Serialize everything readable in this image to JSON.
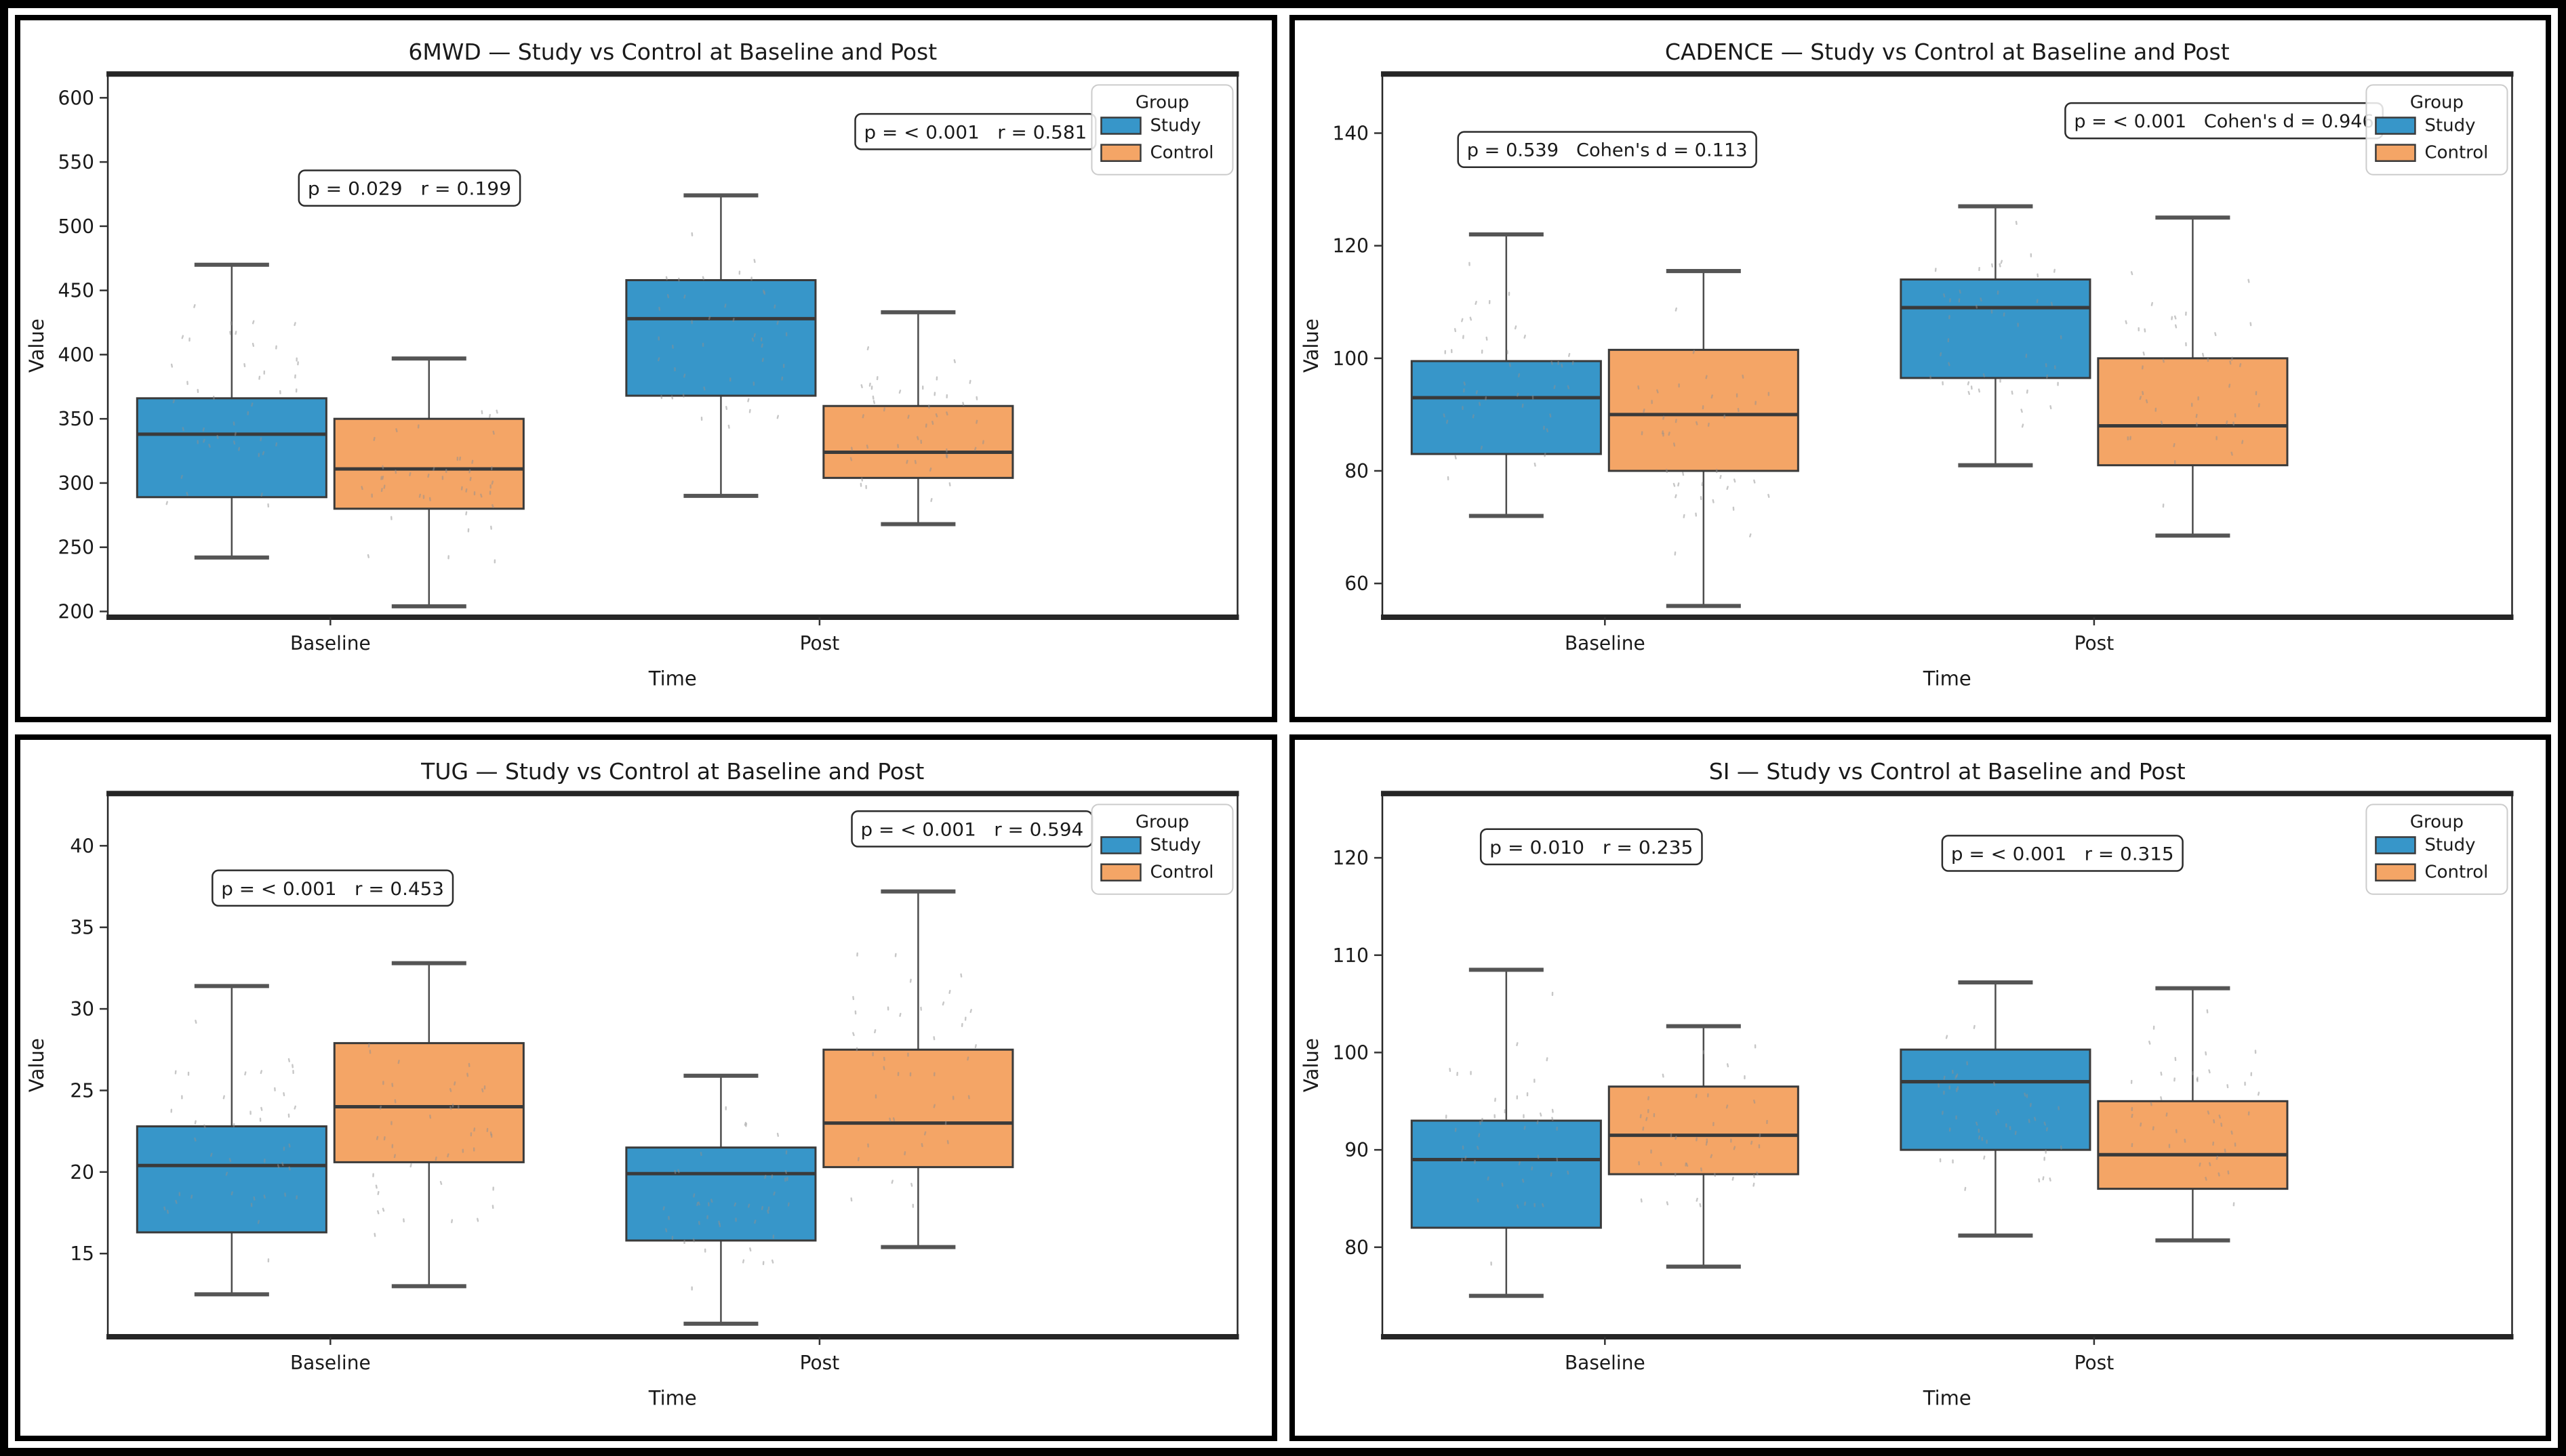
{
  "colors": {
    "study": "#3796c9",
    "control": "#f4a566",
    "box_edge": "#3a3a3a",
    "median": "#3a3a3a",
    "whisker": "#4d4d4d",
    "cap": "#555555",
    "jitter": "#8f8f8f",
    "spine": "#262626",
    "annotation_border": "#2b2b2b",
    "annotation_bg": "#ffffff",
    "legend_border": "#cccccc",
    "legend_bg": "#ffffff"
  },
  "legend": {
    "title": "Group",
    "entries": [
      {
        "label": "Study",
        "color_key": "study"
      },
      {
        "label": "Control",
        "color_key": "control"
      }
    ],
    "position": "upper right"
  },
  "chart_data": [
    {
      "id": "6mwd",
      "type": "box",
      "title": "6MWD — Study vs Control at Baseline and Post",
      "xlabel": "Time",
      "ylabel": "Value",
      "categories": [
        "Baseline",
        "Post"
      ],
      "ylim": [
        195.5,
        618.5
      ],
      "yticks": [
        200,
        250,
        300,
        350,
        400,
        450,
        500,
        550,
        600
      ],
      "grid": false,
      "legend_position": "upper right",
      "series": [
        {
          "name": "Study",
          "boxes": [
            {
              "time": "Baseline",
              "whislo": 242,
              "q1": 289,
              "med": 338,
              "q3": 366,
              "whishi": 470
            },
            {
              "time": "Post",
              "whislo": 290,
              "q1": 368,
              "med": 428,
              "q3": 458,
              "whishi": 524
            }
          ]
        },
        {
          "name": "Control",
          "boxes": [
            {
              "time": "Baseline",
              "whislo": 204,
              "q1": 280,
              "med": 311,
              "q3": 350,
              "whishi": 397
            },
            {
              "time": "Post",
              "whislo": 268,
              "q1": 304,
              "med": 324,
              "q3": 360,
              "whishi": 433
            }
          ]
        }
      ],
      "annotations": [
        {
          "text": "p = 0.029   r = 0.199",
          "fx": 0.267,
          "fy": 0.21
        },
        {
          "text": "p = < 0.001   r = 0.581",
          "fx": 0.768,
          "fy": 0.106
        }
      ]
    },
    {
      "id": "cadence",
      "type": "box",
      "title": "CADENCE — Study vs Control at Baseline and Post",
      "xlabel": "Time",
      "ylabel": "Value",
      "categories": [
        "Baseline",
        "Post"
      ],
      "ylim": [
        54,
        150.5
      ],
      "yticks": [
        60,
        80,
        100,
        120,
        140
      ],
      "grid": false,
      "legend_position": "upper right",
      "series": [
        {
          "name": "Study",
          "boxes": [
            {
              "time": "Baseline",
              "whislo": 72,
              "q1": 83,
              "med": 93,
              "q3": 99.5,
              "whishi": 122
            },
            {
              "time": "Post",
              "whislo": 81,
              "q1": 96.5,
              "med": 109,
              "q3": 114,
              "whishi": 127
            }
          ]
        },
        {
          "name": "Control",
          "boxes": [
            {
              "time": "Baseline",
              "whislo": 56,
              "q1": 80,
              "med": 90,
              "q3": 101.5,
              "whishi": 115.5
            },
            {
              "time": "Post",
              "whislo": 68.5,
              "q1": 81,
              "med": 88,
              "q3": 100,
              "whishi": 125
            }
          ]
        }
      ],
      "annotations": [
        {
          "text": "p = 0.539   Cohen's d = 0.113",
          "fx": 0.199,
          "fy": 0.139
        },
        {
          "text": "p = < 0.001   Cohen's d = 0.946",
          "fx": 0.745,
          "fy": 0.086
        }
      ]
    },
    {
      "id": "tug",
      "type": "box",
      "title": "TUG — Study vs Control at Baseline and Post",
      "xlabel": "Time",
      "ylabel": "Value",
      "categories": [
        "Baseline",
        "Post"
      ],
      "ylim": [
        9.9,
        43.2
      ],
      "yticks": [
        15,
        20,
        25,
        30,
        35,
        40
      ],
      "grid": false,
      "legend_position": "upper right",
      "series": [
        {
          "name": "Study",
          "boxes": [
            {
              "time": "Baseline",
              "whislo": 12.5,
              "q1": 16.3,
              "med": 20.4,
              "q3": 22.8,
              "whishi": 31.4
            },
            {
              "time": "Post",
              "whislo": 10.7,
              "q1": 15.8,
              "med": 19.9,
              "q3": 21.5,
              "whishi": 25.9
            }
          ]
        },
        {
          "name": "Control",
          "boxes": [
            {
              "time": "Baseline",
              "whislo": 13.0,
              "q1": 20.6,
              "med": 24.0,
              "q3": 27.9,
              "whishi": 32.8
            },
            {
              "time": "Post",
              "whislo": 15.4,
              "q1": 20.3,
              "med": 23.0,
              "q3": 27.5,
              "whishi": 37.2
            }
          ]
        }
      ],
      "annotations": [
        {
          "text": "p = < 0.001   r = 0.453",
          "fx": 0.199,
          "fy": 0.174
        },
        {
          "text": "p = < 0.001   r = 0.594",
          "fx": 0.765,
          "fy": 0.065
        }
      ]
    },
    {
      "id": "si",
      "type": "box",
      "title": "SI — Study vs Control at Baseline and Post",
      "xlabel": "Time",
      "ylabel": "Value",
      "categories": [
        "Baseline",
        "Post"
      ],
      "ylim": [
        70.8,
        126.6
      ],
      "yticks": [
        80,
        90,
        100,
        110,
        120
      ],
      "grid": false,
      "legend_position": "upper right",
      "series": [
        {
          "name": "Study",
          "boxes": [
            {
              "time": "Baseline",
              "whislo": 75,
              "q1": 82,
              "med": 89,
              "q3": 93,
              "whishi": 108.5
            },
            {
              "time": "Post",
              "whislo": 81.2,
              "q1": 90,
              "med": 97,
              "q3": 100.3,
              "whishi": 107.2
            }
          ]
        },
        {
          "name": "Control",
          "boxes": [
            {
              "time": "Baseline",
              "whislo": 78,
              "q1": 87.5,
              "med": 91.5,
              "q3": 96.5,
              "whishi": 102.7
            },
            {
              "time": "Post",
              "whislo": 80.7,
              "q1": 86,
              "med": 89.5,
              "q3": 95,
              "whishi": 106.6
            }
          ]
        }
      ],
      "annotations": [
        {
          "text": "p = 0.010   r = 0.235",
          "fx": 0.185,
          "fy": 0.098
        },
        {
          "text": "p = < 0.001   r = 0.315",
          "fx": 0.602,
          "fy": 0.11
        }
      ]
    }
  ]
}
